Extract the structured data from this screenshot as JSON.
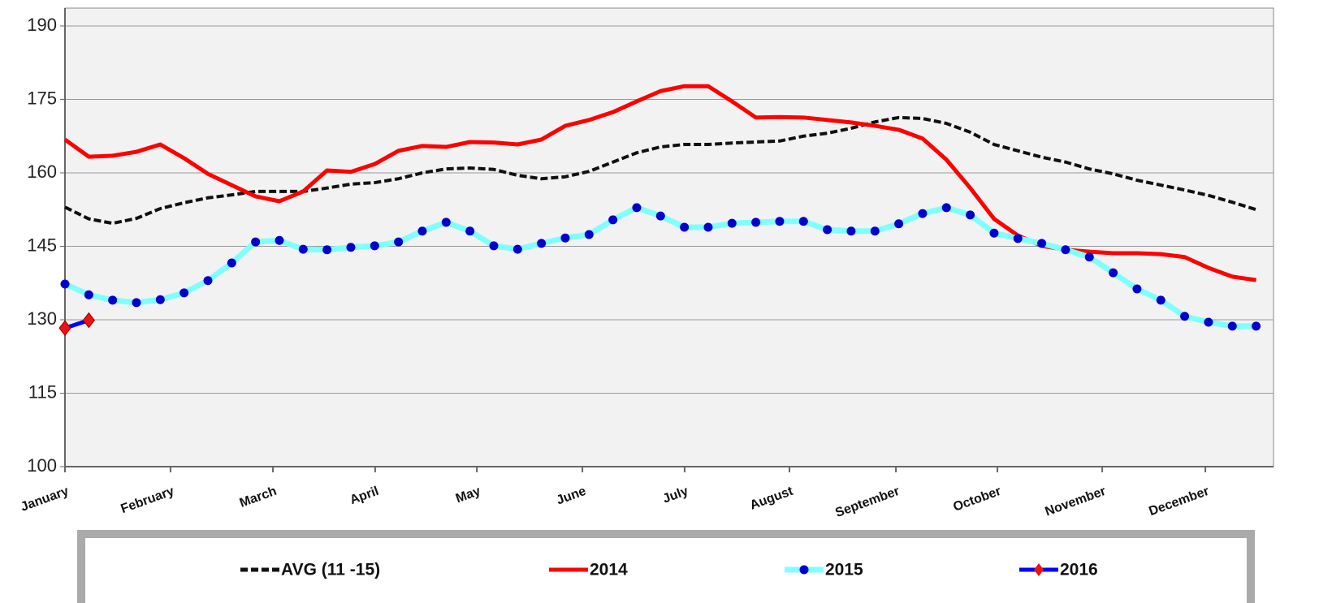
{
  "chart_data": {
    "type": "line",
    "x": [
      1,
      2,
      3,
      4,
      5,
      6,
      7,
      8,
      9,
      10,
      11,
      12,
      13,
      14,
      15,
      16,
      17,
      18,
      19,
      20,
      21,
      22,
      23,
      24,
      25,
      26,
      27,
      28,
      29,
      30,
      31,
      32,
      33,
      34,
      35,
      36,
      37,
      38,
      39,
      40,
      41,
      42,
      43,
      44,
      45,
      46,
      47,
      48,
      49,
      50,
      51
    ],
    "xlim": [
      1,
      51.73
    ],
    "xticks": [
      {
        "value": 1,
        "label": "January"
      },
      {
        "value": 5.43,
        "label": "February"
      },
      {
        "value": 9.73,
        "label": "March"
      },
      {
        "value": 14.02,
        "label": "April"
      },
      {
        "value": 18.29,
        "label": "May"
      },
      {
        "value": 22.72,
        "label": "June"
      },
      {
        "value": 27.01,
        "label": "July"
      },
      {
        "value": 31.41,
        "label": "August"
      },
      {
        "value": 35.88,
        "label": "September"
      },
      {
        "value": 40.14,
        "label": "October"
      },
      {
        "value": 44.54,
        "label": "November"
      },
      {
        "value": 48.87,
        "label": "December"
      }
    ],
    "ylim": [
      100,
      190
    ],
    "yticks": [
      100,
      115,
      130,
      145,
      160,
      175,
      190
    ],
    "grid": true,
    "legend": "bottom",
    "series": [
      {
        "name": "AVG (11 -15)",
        "color": "#111111",
        "dash": true,
        "values": [
          153,
          150.6,
          149.7,
          150.7,
          152.7,
          153.9,
          154.9,
          155.5,
          156.2,
          156.2,
          156.2,
          156.9,
          157.7,
          158,
          158.8,
          160,
          160.8,
          161,
          160.7,
          159.5,
          158.8,
          159.2,
          160.3,
          162.2,
          164.1,
          165.3,
          165.8,
          165.8,
          166.1,
          166.3,
          166.5,
          167.5,
          168.1,
          169.1,
          170.4,
          171.3,
          171.1,
          170.1,
          168.3,
          165.8,
          164.5,
          163.2,
          162.2,
          160.8,
          159.8,
          158.5,
          157.5,
          156.5,
          155.4,
          154,
          152.5
        ]
      },
      {
        "name": "2014",
        "color": "#ff0000",
        "values": [
          166.8,
          163.3,
          163.5,
          164.3,
          165.8,
          163,
          159.8,
          157.5,
          155.2,
          154.2,
          156.2,
          160.5,
          160.2,
          161.8,
          164.5,
          165.5,
          165.3,
          166.3,
          166.2,
          165.8,
          166.8,
          169.6,
          170.8,
          172.4,
          174.6,
          176.7,
          177.7,
          177.7,
          174.6,
          171.3,
          171.4,
          171.3,
          170.8,
          170.3,
          169.6,
          168.8,
          167,
          162.7,
          156.9,
          150.6,
          147.2,
          145.1,
          144.3,
          143.9,
          143.6,
          143.6,
          143.4,
          142.8,
          140.6,
          138.8,
          138.1
        ]
      },
      {
        "name": "2015",
        "color": "#80ffff",
        "marker": "circle",
        "marker_color": "#0000cc",
        "values": [
          137.3,
          135.1,
          134,
          133.5,
          134.1,
          135.5,
          138,
          141.6,
          145.9,
          146.2,
          144.4,
          144.3,
          144.8,
          145.1,
          145.9,
          148.1,
          149.9,
          148.1,
          145.1,
          144.4,
          145.6,
          146.7,
          147.4,
          150.4,
          152.9,
          151.2,
          148.9,
          148.9,
          149.7,
          149.9,
          150.1,
          150.1,
          148.4,
          148.1,
          148.1,
          149.6,
          151.7,
          152.9,
          151.4,
          147.7,
          146.6,
          145.6,
          144.3,
          142.8,
          139.6,
          136.3,
          134,
          130.7,
          129.5,
          128.7,
          128.7
        ]
      },
      {
        "name": "2016",
        "color": "#0000ff",
        "marker": "diamond",
        "marker_color": "#ee1111",
        "values": [
          128.3,
          129.9,
          null,
          null,
          null,
          null,
          null,
          null,
          null,
          null,
          null,
          null,
          null,
          null,
          null,
          null,
          null,
          null,
          null,
          null,
          null,
          null,
          null,
          null,
          null,
          null,
          null,
          null,
          null,
          null,
          null,
          null,
          null,
          null,
          null,
          null,
          null,
          null,
          null,
          null,
          null,
          null,
          null,
          null,
          null,
          null,
          null,
          null,
          null,
          null,
          null
        ]
      }
    ]
  }
}
